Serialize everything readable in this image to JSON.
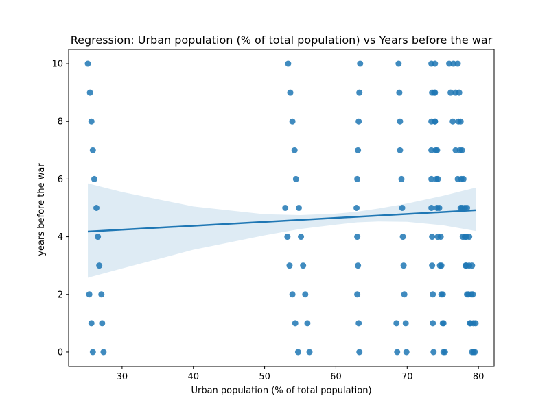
{
  "chart_data": {
    "type": "scatter",
    "title": "Regression: Urban population (% of total population) vs Years before the war",
    "xlabel": "Urban population (% of total population)",
    "ylabel": "years before the war",
    "xlim": [
      22.5,
      82.2
    ],
    "ylim": [
      -0.5,
      10.5
    ],
    "xticks": [
      30,
      40,
      50,
      60,
      70,
      80
    ],
    "yticks": [
      0,
      2,
      4,
      6,
      8,
      10
    ],
    "grid": false,
    "colors": {
      "points": "#1f77b4",
      "line": "#1f77b4",
      "band": "#1f77b4"
    },
    "points": [
      [
        25.2,
        10
      ],
      [
        25.5,
        9
      ],
      [
        25.7,
        8
      ],
      [
        25.9,
        7
      ],
      [
        26.1,
        6
      ],
      [
        26.4,
        5
      ],
      [
        26.6,
        4
      ],
      [
        26.8,
        3
      ],
      [
        27.1,
        2
      ],
      [
        27.2,
        1
      ],
      [
        27.4,
        0
      ],
      [
        25.4,
        2
      ],
      [
        25.7,
        1
      ],
      [
        25.9,
        0
      ],
      [
        53.3,
        10
      ],
      [
        53.6,
        9
      ],
      [
        53.9,
        8
      ],
      [
        54.2,
        7
      ],
      [
        54.4,
        6
      ],
      [
        54.8,
        5
      ],
      [
        55.1,
        4
      ],
      [
        55.4,
        3
      ],
      [
        55.7,
        2
      ],
      [
        56.0,
        1
      ],
      [
        56.3,
        0
      ],
      [
        52.9,
        5
      ],
      [
        53.2,
        4
      ],
      [
        53.5,
        3
      ],
      [
        53.9,
        2
      ],
      [
        54.3,
        1
      ],
      [
        54.7,
        0
      ],
      [
        63.4,
        10
      ],
      [
        63.3,
        9
      ],
      [
        63.2,
        8
      ],
      [
        63.1,
        7
      ],
      [
        63.0,
        6
      ],
      [
        62.9,
        5
      ],
      [
        63.0,
        4
      ],
      [
        63.1,
        3
      ],
      [
        63.0,
        2
      ],
      [
        63.2,
        1
      ],
      [
        63.3,
        0
      ],
      [
        68.8,
        10
      ],
      [
        68.9,
        9
      ],
      [
        69.0,
        8
      ],
      [
        69.0,
        7
      ],
      [
        69.2,
        6
      ],
      [
        69.3,
        5
      ],
      [
        69.4,
        4
      ],
      [
        69.5,
        3
      ],
      [
        69.6,
        2
      ],
      [
        69.8,
        1
      ],
      [
        69.9,
        0
      ],
      [
        68.5,
        1
      ],
      [
        68.6,
        0
      ],
      [
        73.4,
        10
      ],
      [
        73.5,
        9
      ],
      [
        73.4,
        8
      ],
      [
        73.4,
        7
      ],
      [
        73.4,
        6
      ],
      [
        73.4,
        5
      ],
      [
        73.5,
        4
      ],
      [
        73.5,
        3
      ],
      [
        73.6,
        2
      ],
      [
        73.6,
        1
      ],
      [
        73.7,
        0
      ],
      [
        73.9,
        10
      ],
      [
        73.9,
        9
      ],
      [
        73.9,
        8
      ],
      [
        74.0,
        7
      ],
      [
        74.1,
        6
      ],
      [
        74.2,
        5
      ],
      [
        74.3,
        4
      ],
      [
        74.6,
        3
      ],
      [
        74.8,
        2
      ],
      [
        75.0,
        1
      ],
      [
        75.1,
        0
      ],
      [
        73.8,
        9
      ],
      [
        73.9,
        8
      ],
      [
        74.2,
        7
      ],
      [
        74.3,
        6
      ],
      [
        74.5,
        5
      ],
      [
        74.7,
        4
      ],
      [
        74.8,
        3
      ],
      [
        75.0,
        2
      ],
      [
        75.1,
        1
      ],
      [
        75.3,
        0
      ],
      [
        75.9,
        10
      ],
      [
        76.1,
        9
      ],
      [
        76.4,
        8
      ],
      [
        76.8,
        7
      ],
      [
        77.1,
        6
      ],
      [
        77.5,
        5
      ],
      [
        77.8,
        4
      ],
      [
        78.2,
        3
      ],
      [
        78.4,
        2
      ],
      [
        78.8,
        1
      ],
      [
        79.1,
        0
      ],
      [
        76.5,
        10
      ],
      [
        76.8,
        9
      ],
      [
        77.2,
        8
      ],
      [
        77.4,
        7
      ],
      [
        77.6,
        6
      ],
      [
        77.7,
        5
      ],
      [
        78.1,
        4
      ],
      [
        78.3,
        3
      ],
      [
        78.6,
        2
      ],
      [
        78.9,
        1
      ],
      [
        79.3,
        0
      ],
      [
        77.1,
        10
      ],
      [
        77.3,
        9
      ],
      [
        77.5,
        8
      ],
      [
        77.7,
        7
      ],
      [
        77.9,
        6
      ],
      [
        78.1,
        5
      ],
      [
        78.3,
        4
      ],
      [
        78.7,
        3
      ],
      [
        79.0,
        2
      ],
      [
        79.3,
        1
      ],
      [
        79.5,
        0
      ],
      [
        78.4,
        5
      ],
      [
        79.1,
        3
      ],
      [
        79.2,
        2
      ],
      [
        78.7,
        4
      ],
      [
        79.6,
        1
      ]
    ],
    "regression": {
      "x0": 25.2,
      "y0": 4.18,
      "x1": 79.6,
      "y1": 4.92
    },
    "ci_band": {
      "x": [
        25.2,
        30,
        40,
        50,
        55,
        60,
        63,
        66,
        70,
        75,
        79.6
      ],
      "upper": [
        5.85,
        5.55,
        5.05,
        4.78,
        4.75,
        4.8,
        4.87,
        4.98,
        5.15,
        5.42,
        5.7
      ],
      "lower": [
        2.58,
        2.9,
        3.55,
        4.05,
        4.27,
        4.42,
        4.5,
        4.53,
        4.52,
        4.4,
        4.2
      ]
    }
  }
}
